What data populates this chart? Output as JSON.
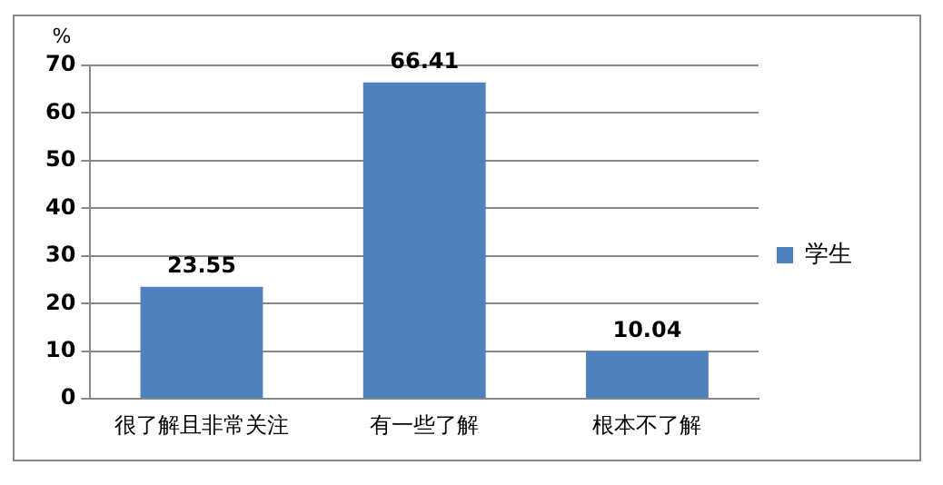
{
  "chart_data": {
    "type": "bar",
    "ylabel": "%",
    "categories": [
      "很了解且非常关注",
      "有一些了解",
      "根本不了解"
    ],
    "series": [
      {
        "name": "学生",
        "color": "#4f81bd",
        "values": [
          23.55,
          66.41,
          10.04
        ]
      }
    ],
    "ylim": [
      0,
      70
    ],
    "yticks": [
      0,
      10,
      20,
      30,
      40,
      50,
      60,
      70
    ],
    "grid": "y",
    "legend": "right",
    "data_labels": true
  }
}
